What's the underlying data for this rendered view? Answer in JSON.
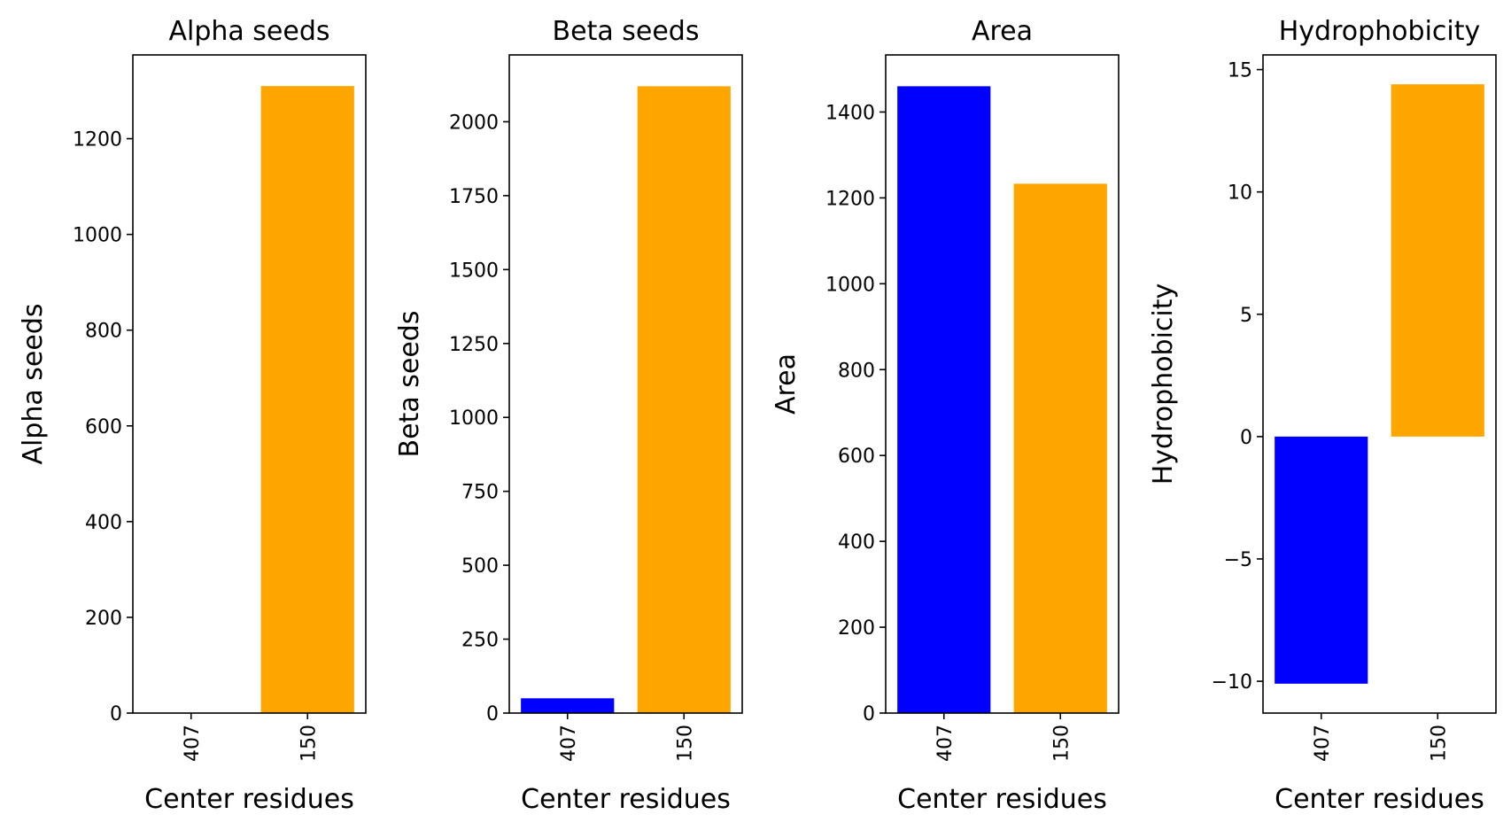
{
  "chart_data": [
    {
      "type": "bar",
      "title": "Alpha seeds",
      "xlabel": "Center residues",
      "ylabel": "Alpha seeds",
      "categories": [
        "407",
        "150"
      ],
      "values": [
        0,
        1310
      ],
      "colors": [
        "#0000ff",
        "#ffa500"
      ],
      "ylim": [
        0,
        1375
      ],
      "yticks": [
        0,
        200,
        400,
        600,
        800,
        1000,
        1200
      ],
      "ytick_labels": [
        "0",
        "200",
        "400",
        "600",
        "800",
        "1000",
        "1200"
      ]
    },
    {
      "type": "bar",
      "title": "Beta seeds",
      "xlabel": "Center residues",
      "ylabel": "Beta seeds",
      "categories": [
        "407",
        "150"
      ],
      "values": [
        50,
        2120
      ],
      "colors": [
        "#0000ff",
        "#ffa500"
      ],
      "ylim": [
        0,
        2226
      ],
      "yticks": [
        0,
        250,
        500,
        750,
        1000,
        1250,
        1500,
        1750,
        2000
      ],
      "ytick_labels": [
        "0",
        "250",
        "500",
        "750",
        "1000",
        "1250",
        "1500",
        "1750",
        "2000"
      ]
    },
    {
      "type": "bar",
      "title": "Area",
      "xlabel": "Center residues",
      "ylabel": "Area",
      "categories": [
        "407",
        "150"
      ],
      "values": [
        1460,
        1233
      ],
      "colors": [
        "#0000ff",
        "#ffa500"
      ],
      "ylim": [
        0,
        1533
      ],
      "yticks": [
        0,
        200,
        400,
        600,
        800,
        1000,
        1200,
        1400
      ],
      "ytick_labels": [
        "0",
        "200",
        "400",
        "600",
        "800",
        "1000",
        "1200",
        "1400"
      ]
    },
    {
      "type": "bar",
      "title": "Hydrophobicity",
      "xlabel": "Center residues",
      "ylabel": "Hydrophobicity",
      "categories": [
        "407",
        "150"
      ],
      "values": [
        -10.1,
        14.4
      ],
      "colors": [
        "#0000ff",
        "#ffa500"
      ],
      "ylim": [
        -11.3,
        15.6
      ],
      "yticks": [
        -10,
        -5,
        0,
        5,
        10,
        15
      ],
      "ytick_labels": [
        "−10",
        "−5",
        "0",
        "5",
        "10",
        "15"
      ]
    }
  ]
}
